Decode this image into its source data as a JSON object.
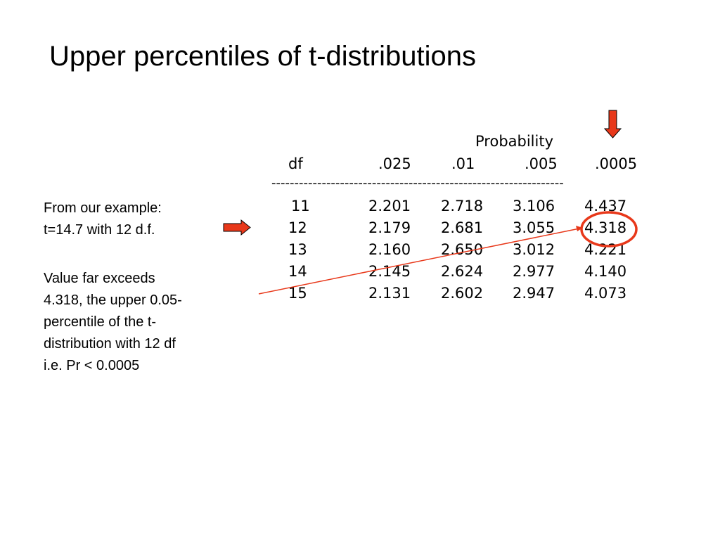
{
  "slide": {
    "title": "Upper percentiles of t-distributions"
  },
  "notes": {
    "example": "From our example:\nt=14.7 with 12 d.f.",
    "explanation": "Value far exceeds\n4.318, the upper 0.05-\npercentile of the t-\ndistribution with 12 df\ni.e. Pr < 0.0005"
  },
  "table": {
    "group_label": "Probability",
    "headers": [
      "df",
      ".025",
      ".01",
      ".005",
      ".0005"
    ],
    "rule": "----------------------------------------------------------------",
    "rows": [
      [
        "11",
        "2.201",
        "2.718",
        "3.106",
        "4.437"
      ],
      [
        "12",
        "2.179",
        "2.681",
        "3.055",
        "4.318"
      ],
      [
        "13",
        "2.160",
        "2.650",
        "3.012",
        "4.221"
      ],
      [
        "14",
        "2.145",
        "2.624",
        "2.977",
        "4.140"
      ],
      [
        "15",
        "2.131",
        "2.602",
        "2.947",
        "4.073"
      ]
    ]
  },
  "annotations": {
    "arrow_color": "#e8381a",
    "circle_color": "#e8381a",
    "line_color": "#e8381a",
    "highlighted_value": "4.318"
  }
}
